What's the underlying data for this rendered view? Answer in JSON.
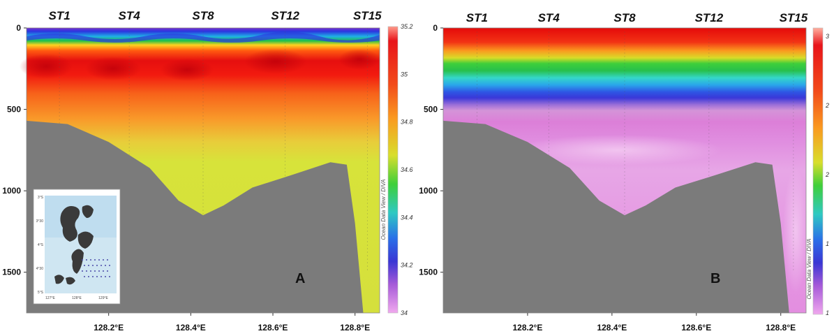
{
  "chart_data": [
    {
      "type": "heatmap",
      "panel_label": "A",
      "stations": [
        "ST1",
        "ST4",
        "ST8",
        "ST12",
        "ST15"
      ],
      "station_longitudes": [
        128.08,
        128.25,
        128.43,
        128.63,
        128.83
      ],
      "x_ticks": [
        {
          "value": 128.2,
          "label": "128.2°E"
        },
        {
          "value": 128.4,
          "label": "128.4°E"
        },
        {
          "value": 128.6,
          "label": "128.6°E"
        },
        {
          "value": 128.8,
          "label": "128.8°E"
        }
      ],
      "xlim": [
        128.0,
        128.86
      ],
      "y_ticks": [
        {
          "value": 0,
          "label": "0"
        },
        {
          "value": 500,
          "label": "500"
        },
        {
          "value": 1000,
          "label": "1000"
        },
        {
          "value": 1500,
          "label": "1500"
        }
      ],
      "ylim": [
        0,
        1750
      ],
      "colorbar_ticks": [
        "35.2",
        "35",
        "34.8",
        "34.6",
        "34.4",
        "34.2",
        "34"
      ],
      "colorbar_range": [
        34.0,
        35.2
      ],
      "colorbar_side_text": "Ocean Data View / DIVA",
      "seafloor_depth_m": [
        [
          128.0,
          570
        ],
        [
          128.1,
          590
        ],
        [
          128.2,
          700
        ],
        [
          128.3,
          860
        ],
        [
          128.37,
          1060
        ],
        [
          128.43,
          1150
        ],
        [
          128.48,
          1090
        ],
        [
          128.55,
          980
        ],
        [
          128.65,
          900
        ],
        [
          128.74,
          825
        ],
        [
          128.78,
          840
        ],
        [
          128.8,
          1200
        ],
        [
          128.82,
          1750
        ]
      ],
      "inset_map": {
        "lat_ticks": [
          "3°S",
          "3°30",
          "4°S",
          "4°30",
          "5°S"
        ],
        "lon_ticks": [
          "127°E",
          "128°E",
          "129°E"
        ]
      }
    },
    {
      "type": "heatmap",
      "panel_label": "B",
      "stations": [
        "ST1",
        "ST4",
        "ST8",
        "ST12",
        "ST15"
      ],
      "station_longitudes": [
        128.08,
        128.25,
        128.43,
        128.63,
        128.83
      ],
      "x_ticks": [
        {
          "value": 128.2,
          "label": "128.2°E"
        },
        {
          "value": 128.4,
          "label": "128.4°E"
        },
        {
          "value": 128.6,
          "label": "128.6°E"
        },
        {
          "value": 128.8,
          "label": "128.8°E"
        }
      ],
      "xlim": [
        128.0,
        128.86
      ],
      "y_ticks": [
        {
          "value": 0,
          "label": "0"
        },
        {
          "value": 500,
          "label": "500"
        },
        {
          "value": 1000,
          "label": "1000"
        },
        {
          "value": 1500,
          "label": "1500"
        }
      ],
      "ylim": [
        0,
        1750
      ],
      "colorbar_ticks": [
        "3",
        "2",
        "2",
        "1",
        "1"
      ],
      "colorbar_side_text": "Ocean Data View / DIVA",
      "seafloor_depth_m": [
        [
          128.0,
          570
        ],
        [
          128.1,
          590
        ],
        [
          128.2,
          700
        ],
        [
          128.3,
          860
        ],
        [
          128.37,
          1060
        ],
        [
          128.43,
          1150
        ],
        [
          128.48,
          1090
        ],
        [
          128.55,
          980
        ],
        [
          128.65,
          900
        ],
        [
          128.74,
          825
        ],
        [
          128.78,
          840
        ],
        [
          128.8,
          1200
        ],
        [
          128.82,
          1750
        ]
      ]
    }
  ]
}
